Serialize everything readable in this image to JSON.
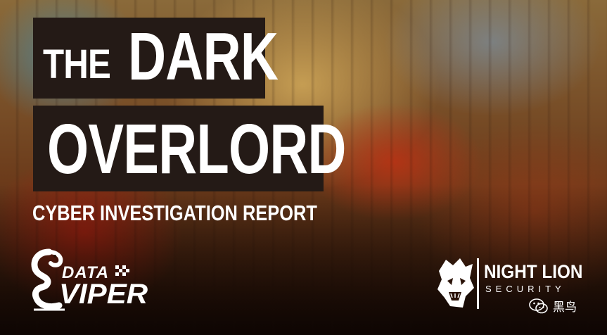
{
  "cover": {
    "title_small": "THE",
    "title_word_1": "DARK",
    "title_word_2": "OVERLORD",
    "subtitle": "CYBER INVESTIGATION REPORT"
  },
  "logos": {
    "left": {
      "line1": "DATA",
      "line2": "VIPER",
      "icon": "cobra-icon"
    },
    "right": {
      "name": "NIGHT LION",
      "tagline": "SECURITY",
      "icon": "lion-head-icon"
    }
  },
  "watermark": {
    "icon": "wechat-icon",
    "text": "黑鸟"
  },
  "colors": {
    "title_block_bg": "#241a16",
    "text": "#ffffff"
  }
}
